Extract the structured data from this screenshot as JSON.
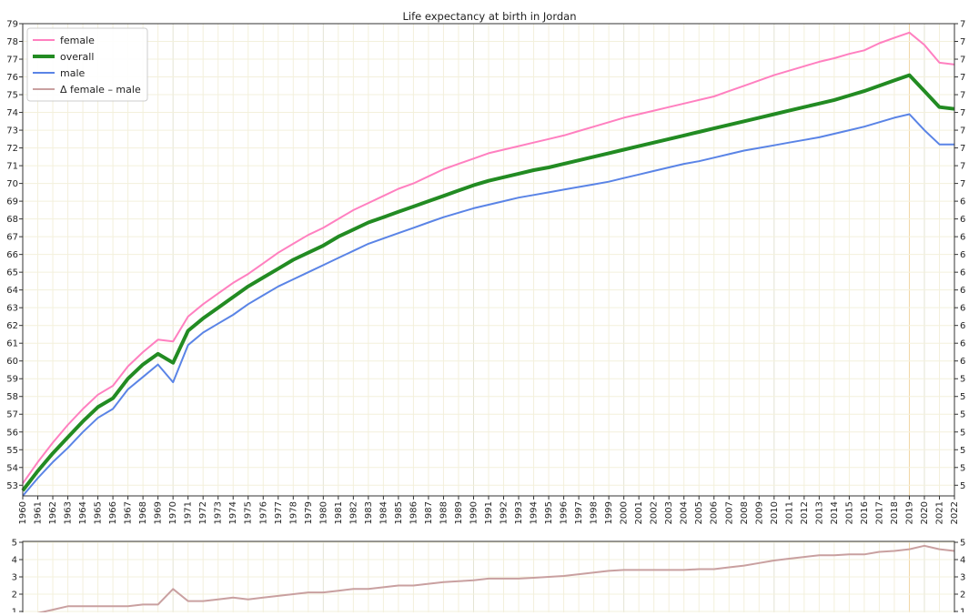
{
  "chart_data": [
    {
      "type": "line",
      "title": "Life expectancy at birth in Jordan",
      "xlabel": "",
      "ylabel": "",
      "xlim": [
        1960,
        2022
      ],
      "ylim": [
        52.4,
        79
      ],
      "y_ticks": [
        53,
        54,
        55,
        56,
        57,
        58,
        59,
        60,
        61,
        62,
        63,
        64,
        65,
        66,
        67,
        68,
        69,
        70,
        71,
        72,
        73,
        74,
        75,
        76,
        77,
        78,
        79
      ],
      "right_tick_labels": [
        "5",
        "5",
        "5",
        "5",
        "5",
        "5",
        "5",
        "6",
        "6",
        "6",
        "6",
        "6",
        "6",
        "6",
        "6",
        "6",
        "6",
        "7",
        "7",
        "7",
        "7",
        "7",
        "7",
        "7",
        "7",
        "7",
        "7"
      ],
      "grid": true,
      "legend_position": "top-left",
      "x": [
        1960,
        1961,
        1962,
        1963,
        1964,
        1965,
        1966,
        1967,
        1968,
        1969,
        1970,
        1971,
        1972,
        1973,
        1974,
        1975,
        1976,
        1977,
        1978,
        1979,
        1980,
        1981,
        1982,
        1983,
        1984,
        1985,
        1986,
        1987,
        1988,
        1989,
        1990,
        1991,
        1992,
        1993,
        1994,
        1995,
        1996,
        1997,
        1998,
        1999,
        2000,
        2001,
        2002,
        2003,
        2004,
        2005,
        2006,
        2007,
        2008,
        2009,
        2010,
        2011,
        2012,
        2013,
        2014,
        2015,
        2016,
        2017,
        2018,
        2019,
        2020,
        2021,
        2022
      ],
      "series": [
        {
          "name": "female",
          "color": "#ff80c0",
          "values": [
            53.1,
            54.3,
            55.4,
            56.4,
            57.3,
            58.1,
            58.6,
            59.7,
            60.5,
            61.2,
            61.1,
            62.5,
            63.2,
            63.8,
            64.4,
            64.9,
            65.5,
            66.1,
            66.6,
            67.1,
            67.5,
            68.0,
            68.5,
            68.9,
            69.3,
            69.7,
            70.0,
            70.4,
            70.8,
            71.1,
            71.4,
            71.7,
            71.9,
            72.1,
            72.3,
            72.5,
            72.7,
            72.95,
            73.2,
            73.45,
            73.7,
            73.9,
            74.1,
            74.3,
            74.5,
            74.7,
            74.9,
            75.2,
            75.5,
            75.8,
            76.1,
            76.35,
            76.6,
            76.85,
            77.05,
            77.3,
            77.5,
            77.9,
            78.2,
            78.5,
            77.8,
            76.8,
            76.7
          ]
        },
        {
          "name": "overall",
          "color": "#228b22",
          "values": [
            52.7,
            53.8,
            54.8,
            55.7,
            56.6,
            57.4,
            57.9,
            59.0,
            59.8,
            60.4,
            59.9,
            61.7,
            62.4,
            63.0,
            63.6,
            64.2,
            64.7,
            65.2,
            65.7,
            66.1,
            66.5,
            67.0,
            67.4,
            67.8,
            68.1,
            68.4,
            68.7,
            69.0,
            69.3,
            69.6,
            69.9,
            70.15,
            70.35,
            70.55,
            70.75,
            70.9,
            71.1,
            71.3,
            71.5,
            71.7,
            71.9,
            72.1,
            72.3,
            72.5,
            72.7,
            72.9,
            73.1,
            73.3,
            73.5,
            73.7,
            73.9,
            74.1,
            74.3,
            74.5,
            74.7,
            74.95,
            75.2,
            75.5,
            75.8,
            76.1,
            75.2,
            74.3,
            74.2
          ]
        },
        {
          "name": "male",
          "color": "#5a84e6",
          "values": [
            52.4,
            53.4,
            54.3,
            55.1,
            56.0,
            56.8,
            57.3,
            58.4,
            59.1,
            59.8,
            58.8,
            60.9,
            61.6,
            62.1,
            62.6,
            63.2,
            63.7,
            64.2,
            64.6,
            65.0,
            65.4,
            65.8,
            66.2,
            66.6,
            66.9,
            67.2,
            67.5,
            67.8,
            68.1,
            68.35,
            68.6,
            68.8,
            69.0,
            69.2,
            69.35,
            69.5,
            69.65,
            69.8,
            69.95,
            70.1,
            70.3,
            70.5,
            70.7,
            70.9,
            71.1,
            71.25,
            71.45,
            71.65,
            71.85,
            72.0,
            72.15,
            72.3,
            72.45,
            72.6,
            72.8,
            73.0,
            73.2,
            73.45,
            73.7,
            73.9,
            73.0,
            72.2,
            72.2
          ]
        },
        {
          "name": "Δ female – male",
          "color": "#c9a0a0",
          "values": [
            0.7,
            0.9,
            1.1,
            1.3,
            1.3,
            1.3,
            1.3,
            1.3,
            1.4,
            1.4,
            2.3,
            1.6,
            1.6,
            1.7,
            1.8,
            1.7,
            1.8,
            1.9,
            2.0,
            2.1,
            2.1,
            2.2,
            2.3,
            2.3,
            2.4,
            2.5,
            2.5,
            2.6,
            2.7,
            2.75,
            2.8,
            2.9,
            2.9,
            2.9,
            2.95,
            3.0,
            3.05,
            3.15,
            3.25,
            3.35,
            3.4,
            3.4,
            3.4,
            3.4,
            3.4,
            3.45,
            3.45,
            3.55,
            3.65,
            3.8,
            3.95,
            4.05,
            4.15,
            4.25,
            4.25,
            4.3,
            4.3,
            4.45,
            4.5,
            4.6,
            4.8,
            4.6,
            4.5
          ]
        }
      ]
    },
    {
      "type": "line",
      "title": "",
      "xlim": [
        1960,
        2022
      ],
      "ylim": [
        1,
        5
      ],
      "y_ticks": [
        1,
        2,
        3,
        4,
        5
      ],
      "grid": true,
      "series_ref": "Δ female – male"
    }
  ]
}
